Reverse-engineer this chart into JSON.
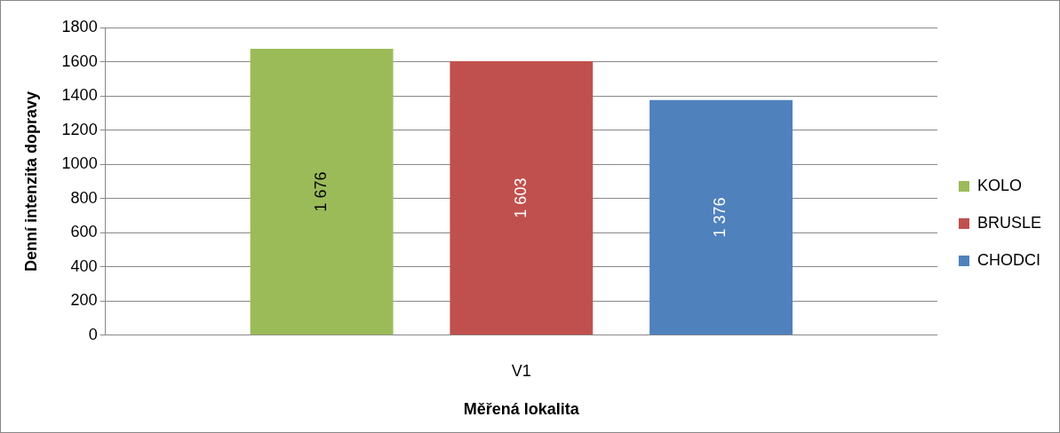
{
  "chart_data": {
    "type": "bar",
    "xlabel": "Měřená lokalita",
    "ylabel": "Denní intenzita dopravy",
    "categories": [
      "V1"
    ],
    "series": [
      {
        "name": "KOLO",
        "color": "#9bbb59",
        "values": [
          1676
        ],
        "value_labels": [
          "1 676"
        ]
      },
      {
        "name": "BRUSLE",
        "color": "#c0504d",
        "values": [
          1603
        ],
        "value_labels": [
          "1 603"
        ]
      },
      {
        "name": "CHODCI",
        "color": "#4f81bd",
        "values": [
          1376
        ],
        "value_labels": [
          "1 376"
        ]
      }
    ],
    "ylim": [
      0,
      1800
    ],
    "yticks": [
      0,
      200,
      400,
      600,
      800,
      1000,
      1200,
      1400,
      1600,
      1800
    ],
    "grid": "y",
    "legend": "right"
  }
}
